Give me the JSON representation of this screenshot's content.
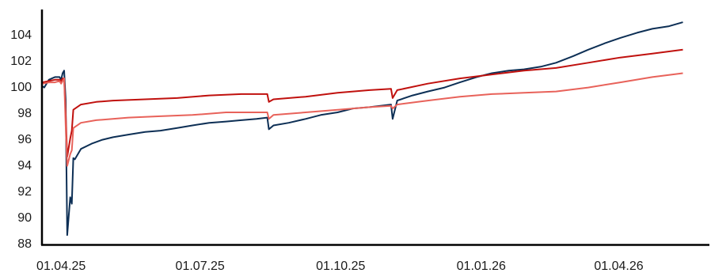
{
  "chart_data": {
    "type": "line",
    "title": "",
    "xlabel": "",
    "ylabel": "",
    "ylim": [
      88,
      106
    ],
    "xlim": [
      "2025-03-20",
      "2026-05-20"
    ],
    "grid": false,
    "legend": "none",
    "y_ticks": [
      88,
      90,
      92,
      94,
      96,
      98,
      100,
      102,
      104
    ],
    "x_ticks": [
      {
        "date": "2025-04-01",
        "label": "01.04.25"
      },
      {
        "date": "2025-07-01",
        "label": "01.07.25"
      },
      {
        "date": "2025-10-01",
        "label": "01.10.25"
      },
      {
        "date": "2026-01-01",
        "label": "01.01.26"
      },
      {
        "date": "2026-04-01",
        "label": "01.04.26"
      }
    ],
    "series": [
      {
        "color": "#0d2f55",
        "points": [
          [
            "2025-03-20",
            100.0
          ],
          [
            "2025-03-21",
            99.9
          ],
          [
            "2025-03-24",
            100.5
          ],
          [
            "2025-03-26",
            100.6
          ],
          [
            "2025-03-28",
            100.7
          ],
          [
            "2025-03-31",
            100.7
          ],
          [
            "2025-04-01",
            100.5
          ],
          [
            "2025-04-02",
            101.0
          ],
          [
            "2025-04-03",
            101.2
          ],
          [
            "2025-04-04",
            99.0
          ],
          [
            "2025-04-05",
            88.6
          ],
          [
            "2025-04-07",
            91.5
          ],
          [
            "2025-04-08",
            91.0
          ],
          [
            "2025-04-09",
            94.5
          ],
          [
            "2025-04-10",
            94.4
          ],
          [
            "2025-04-14",
            95.2
          ],
          [
            "2025-04-21",
            95.6
          ],
          [
            "2025-04-28",
            95.9
          ],
          [
            "2025-05-05",
            96.1
          ],
          [
            "2025-05-15",
            96.3
          ],
          [
            "2025-05-26",
            96.5
          ],
          [
            "2025-06-05",
            96.6
          ],
          [
            "2025-06-16",
            96.8
          ],
          [
            "2025-06-26",
            97.0
          ],
          [
            "2025-07-07",
            97.2
          ],
          [
            "2025-07-18",
            97.3
          ],
          [
            "2025-07-28",
            97.4
          ],
          [
            "2025-08-07",
            97.5
          ],
          [
            "2025-08-14",
            97.6
          ],
          [
            "2025-08-15",
            96.7
          ],
          [
            "2025-08-18",
            97.0
          ],
          [
            "2025-08-28",
            97.2
          ],
          [
            "2025-09-08",
            97.5
          ],
          [
            "2025-09-18",
            97.8
          ],
          [
            "2025-09-29",
            98.0
          ],
          [
            "2025-10-09",
            98.3
          ],
          [
            "2025-10-20",
            98.4
          ],
          [
            "2025-11-03",
            98.6
          ],
          [
            "2025-11-04",
            97.5
          ],
          [
            "2025-11-07",
            98.9
          ],
          [
            "2025-11-17",
            99.3
          ],
          [
            "2025-11-27",
            99.6
          ],
          [
            "2025-12-08",
            99.9
          ],
          [
            "2025-12-18",
            100.3
          ],
          [
            "2025-12-29",
            100.7
          ],
          [
            "2026-01-08",
            101.0
          ],
          [
            "2026-01-19",
            101.2
          ],
          [
            "2026-01-29",
            101.3
          ],
          [
            "2026-02-09",
            101.5
          ],
          [
            "2026-02-19",
            101.8
          ],
          [
            "2026-03-02",
            102.3
          ],
          [
            "2026-03-12",
            102.8
          ],
          [
            "2026-03-23",
            103.3
          ],
          [
            "2026-04-02",
            103.7
          ],
          [
            "2026-04-13",
            104.1
          ],
          [
            "2026-04-23",
            104.4
          ],
          [
            "2026-05-04",
            104.6
          ],
          [
            "2026-05-13",
            104.9
          ]
        ]
      },
      {
        "color": "#c0110e",
        "points": [
          [
            "2025-03-20",
            100.3
          ],
          [
            "2025-03-24",
            100.4
          ],
          [
            "2025-03-28",
            100.5
          ],
          [
            "2025-03-31",
            100.5
          ],
          [
            "2025-04-01",
            100.4
          ],
          [
            "2025-04-02",
            100.6
          ],
          [
            "2025-04-03",
            100.6
          ],
          [
            "2025-04-04",
            98.0
          ],
          [
            "2025-04-05",
            94.6
          ],
          [
            "2025-04-07",
            96.0
          ],
          [
            "2025-04-08",
            96.6
          ],
          [
            "2025-04-09",
            98.2
          ],
          [
            "2025-04-14",
            98.6
          ],
          [
            "2025-04-24",
            98.8
          ],
          [
            "2025-05-05",
            98.9
          ],
          [
            "2025-05-26",
            99.0
          ],
          [
            "2025-06-16",
            99.1
          ],
          [
            "2025-07-07",
            99.3
          ],
          [
            "2025-07-28",
            99.4
          ],
          [
            "2025-08-14",
            99.4
          ],
          [
            "2025-08-15",
            98.8
          ],
          [
            "2025-08-18",
            99.0
          ],
          [
            "2025-09-08",
            99.2
          ],
          [
            "2025-09-29",
            99.5
          ],
          [
            "2025-10-20",
            99.7
          ],
          [
            "2025-11-03",
            99.8
          ],
          [
            "2025-11-04",
            99.1
          ],
          [
            "2025-11-07",
            99.7
          ],
          [
            "2025-11-27",
            100.2
          ],
          [
            "2025-12-18",
            100.6
          ],
          [
            "2026-01-08",
            100.9
          ],
          [
            "2026-01-29",
            101.2
          ],
          [
            "2026-02-19",
            101.4
          ],
          [
            "2026-03-12",
            101.8
          ],
          [
            "2026-04-02",
            102.2
          ],
          [
            "2026-04-23",
            102.5
          ],
          [
            "2026-05-13",
            102.8
          ]
        ]
      },
      {
        "color": "#e8625a",
        "points": [
          [
            "2025-03-20",
            100.2
          ],
          [
            "2025-03-24",
            100.3
          ],
          [
            "2025-03-28",
            100.3
          ],
          [
            "2025-03-31",
            100.4
          ],
          [
            "2025-04-01",
            100.2
          ],
          [
            "2025-04-02",
            100.4
          ],
          [
            "2025-04-03",
            100.6
          ],
          [
            "2025-04-04",
            97.0
          ],
          [
            "2025-04-05",
            93.9
          ],
          [
            "2025-04-07",
            94.8
          ],
          [
            "2025-04-08",
            95.1
          ],
          [
            "2025-04-09",
            96.8
          ],
          [
            "2025-04-14",
            97.2
          ],
          [
            "2025-04-24",
            97.4
          ],
          [
            "2025-05-15",
            97.6
          ],
          [
            "2025-06-05",
            97.7
          ],
          [
            "2025-06-26",
            97.8
          ],
          [
            "2025-07-18",
            98.0
          ],
          [
            "2025-08-14",
            98.0
          ],
          [
            "2025-08-15",
            97.5
          ],
          [
            "2025-08-18",
            97.8
          ],
          [
            "2025-09-08",
            98.0
          ],
          [
            "2025-09-29",
            98.2
          ],
          [
            "2025-10-20",
            98.4
          ],
          [
            "2025-11-03",
            98.5
          ],
          [
            "2025-11-04",
            98.3
          ],
          [
            "2025-11-07",
            98.6
          ],
          [
            "2025-11-27",
            98.9
          ],
          [
            "2025-12-18",
            99.2
          ],
          [
            "2026-01-08",
            99.4
          ],
          [
            "2026-01-29",
            99.5
          ],
          [
            "2026-02-19",
            99.6
          ],
          [
            "2026-03-12",
            99.9
          ],
          [
            "2026-04-02",
            100.3
          ],
          [
            "2026-04-23",
            100.7
          ],
          [
            "2026-05-13",
            101.0
          ]
        ]
      }
    ]
  }
}
